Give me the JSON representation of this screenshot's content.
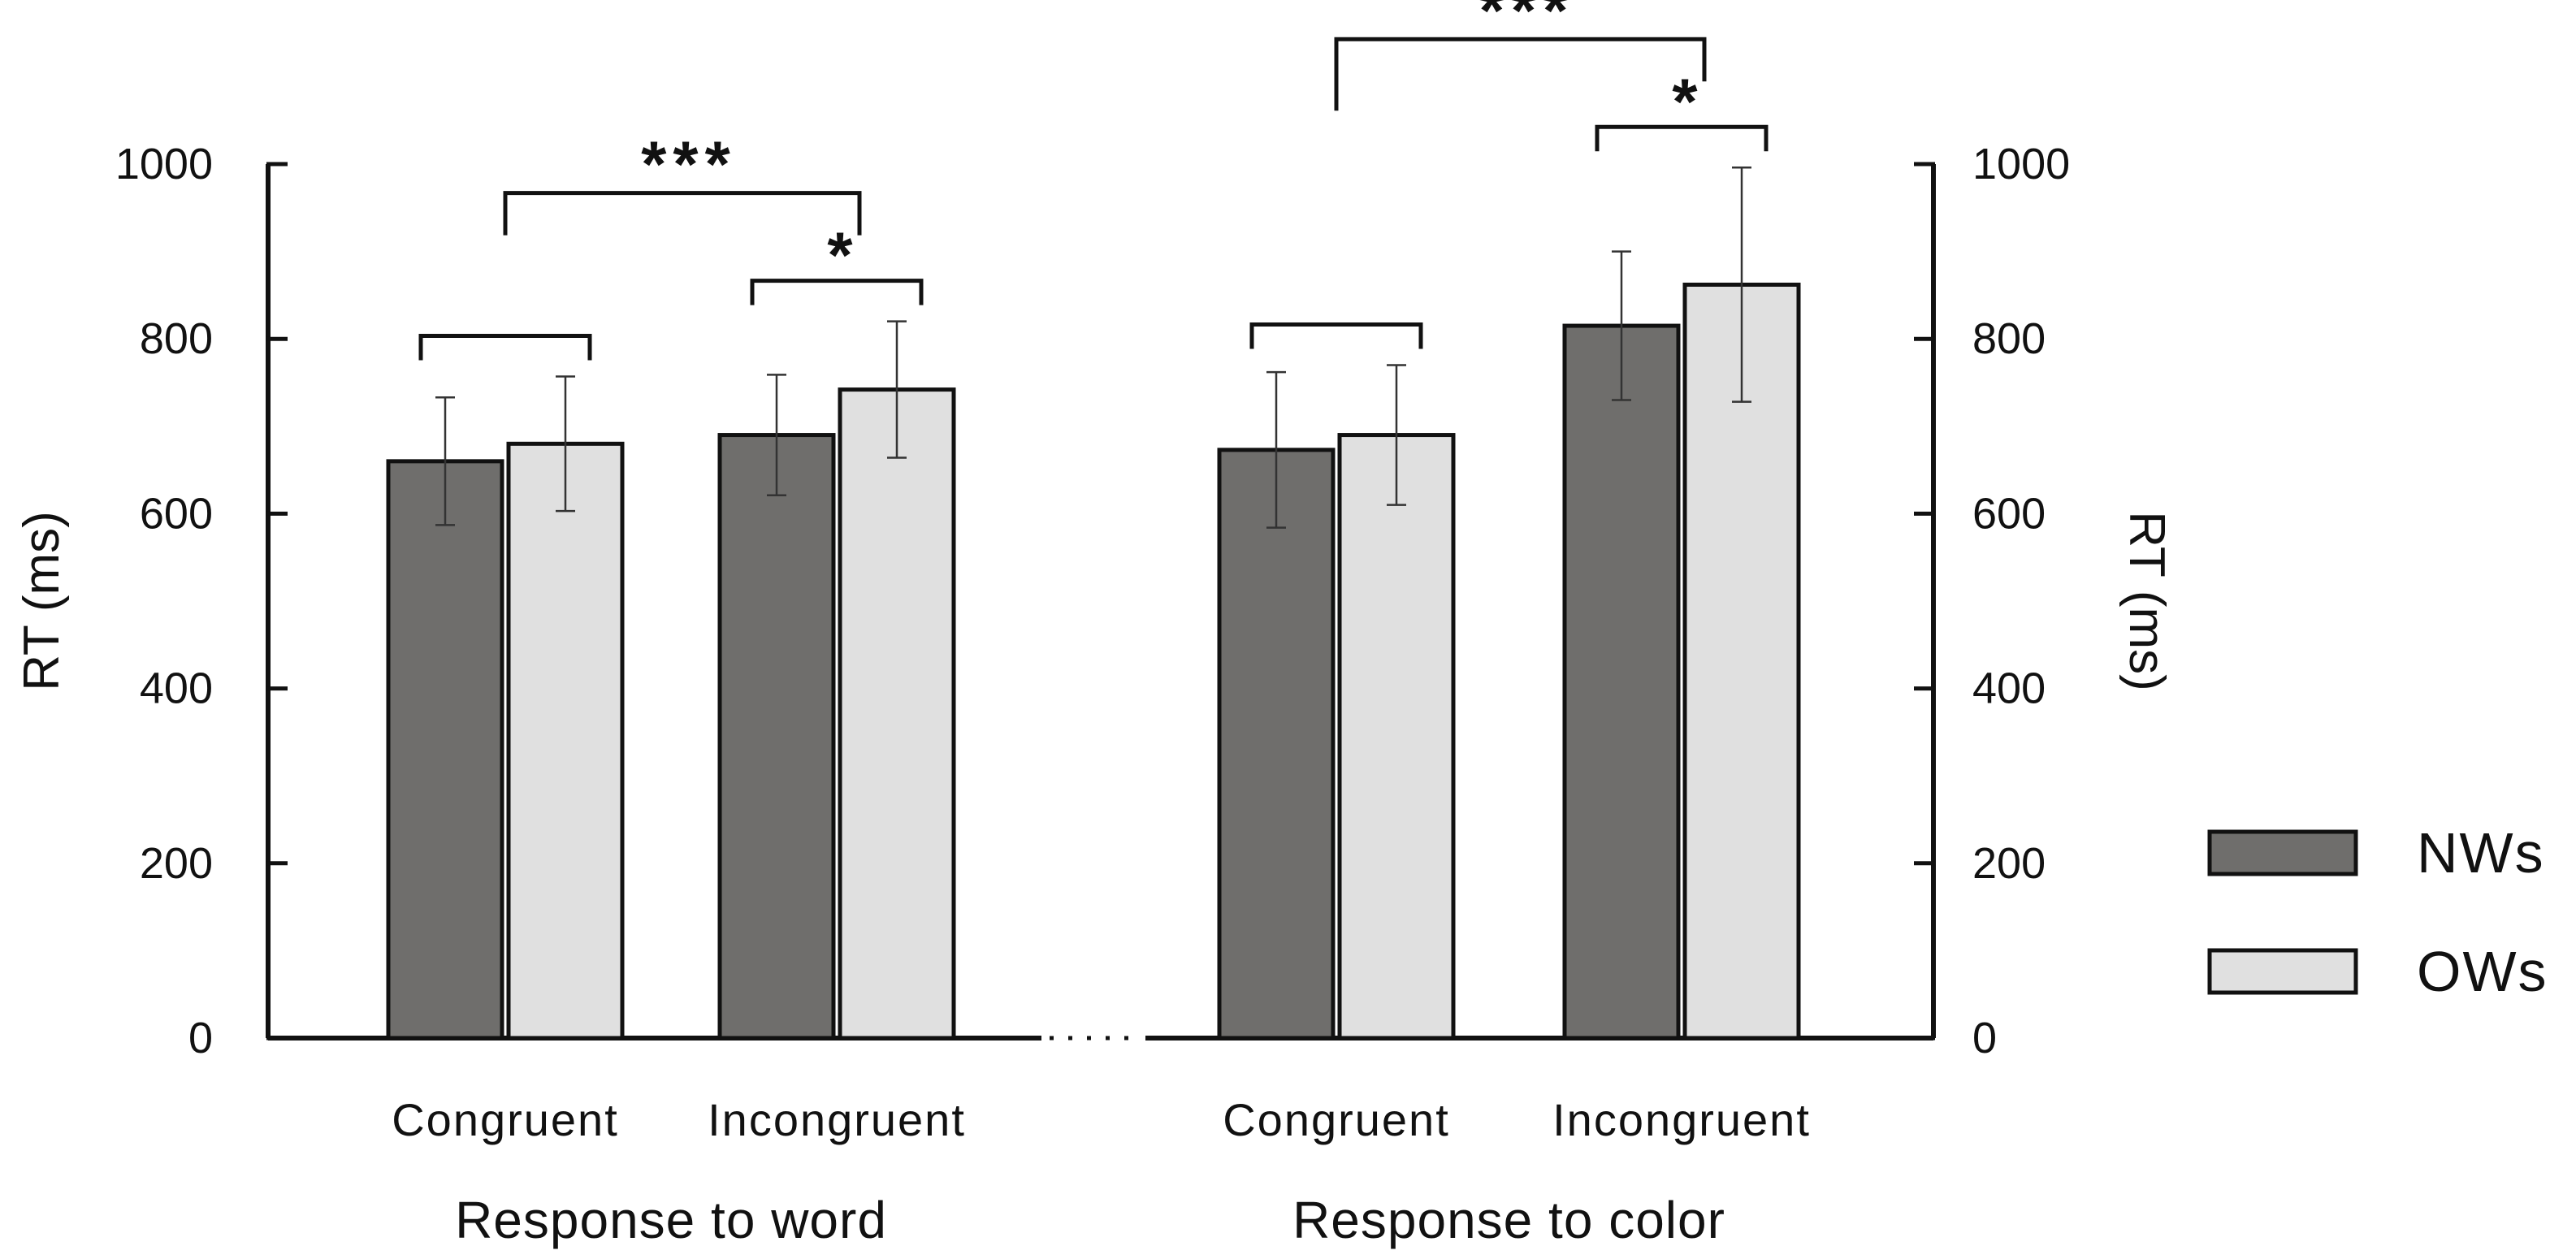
{
  "chart_data": {
    "type": "bar",
    "ylabel_left": "RT (ms)",
    "ylabel_right": "RT (ms)",
    "ylim": [
      0,
      1000
    ],
    "yticks": [
      0,
      200,
      400,
      600,
      800,
      1000
    ],
    "groups": [
      {
        "label": "Response to word",
        "categories": [
          {
            "label": "Congruent",
            "values": {
              "NWs": 660,
              "OWs": 680
            },
            "error": {
              "NWs": 73,
              "OWs": 77
            },
            "significance": ""
          },
          {
            "label": "Incongruent",
            "values": {
              "NWs": 690,
              "OWs": 742
            },
            "error": {
              "NWs": 69,
              "OWs": 78
            },
            "significance": "*"
          }
        ],
        "comparison": {
          "from": "Congruent",
          "to": "Incongruent",
          "label": "***"
        }
      },
      {
        "label": "Response to color",
        "categories": [
          {
            "label": "Congruent",
            "values": {
              "NWs": 673,
              "OWs": 690
            },
            "error": {
              "NWs": 89,
              "OWs": 80
            },
            "significance": ""
          },
          {
            "label": "Incongruent",
            "values": {
              "NWs": 815,
              "OWs": 862
            },
            "error": {
              "NWs": 85,
              "OWs": 134
            },
            "significance": "*"
          }
        ],
        "comparison": {
          "from": "Congruent",
          "to": "Incongruent",
          "label": "***"
        }
      }
    ],
    "series": [
      {
        "name": "NWs",
        "color": "#6f6e6c"
      },
      {
        "name": "OWs",
        "color": "#e0e0e0"
      }
    ],
    "legend": {
      "position": "right",
      "items": [
        "NWs",
        "OWs"
      ]
    }
  }
}
